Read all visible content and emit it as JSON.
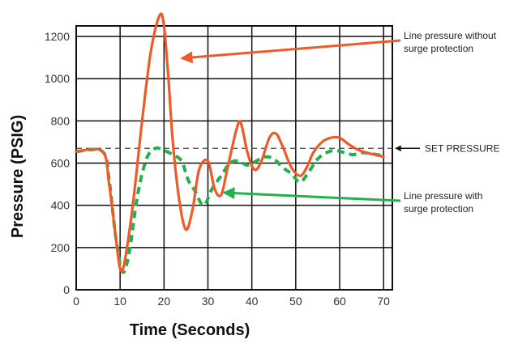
{
  "chart_data": {
    "type": "line",
    "title": "",
    "xlabel": "Time (Seconds)",
    "ylabel": "Pressure (PSIG)",
    "xlim": [
      0,
      72
    ],
    "ylim": [
      0,
      1250
    ],
    "xticks": [
      0,
      10,
      20,
      30,
      40,
      50,
      60,
      70
    ],
    "yticks": [
      0,
      200,
      400,
      600,
      800,
      1000,
      1200
    ],
    "grid": true,
    "set_pressure": {
      "value": 670,
      "label": "SET PRESSURE"
    },
    "series": [
      {
        "id": "without",
        "color": "#f05a28",
        "style": "solid",
        "points": [
          [
            0,
            655
          ],
          [
            6,
            655
          ],
          [
            7.5,
            500
          ],
          [
            9,
            250
          ],
          [
            10,
            100
          ],
          [
            11,
            130
          ],
          [
            13,
            420
          ],
          [
            15,
            800
          ],
          [
            17,
            1130
          ],
          [
            19,
            1300
          ],
          [
            20,
            1250
          ],
          [
            21,
            1000
          ],
          [
            22,
            700
          ],
          [
            23.5,
            420
          ],
          [
            25,
            285
          ],
          [
            26.5,
            380
          ],
          [
            28,
            570
          ],
          [
            30,
            610
          ],
          [
            31.5,
            480
          ],
          [
            33,
            450
          ],
          [
            34.5,
            580
          ],
          [
            36.5,
            760
          ],
          [
            37.5,
            790
          ],
          [
            39,
            650
          ],
          [
            40.5,
            570
          ],
          [
            42,
            600
          ],
          [
            44,
            720
          ],
          [
            45.5,
            740
          ],
          [
            47,
            680
          ],
          [
            49,
            580
          ],
          [
            51,
            540
          ],
          [
            52.5,
            580
          ],
          [
            54,
            650
          ],
          [
            56,
            700
          ],
          [
            58,
            720
          ],
          [
            60,
            720
          ],
          [
            62,
            690
          ],
          [
            64,
            665
          ],
          [
            66,
            650
          ],
          [
            68,
            640
          ],
          [
            70,
            630
          ]
        ]
      },
      {
        "id": "with",
        "color": "#22b14c",
        "style": "dashed",
        "points": [
          [
            0,
            655
          ],
          [
            6,
            655
          ],
          [
            7.5,
            520
          ],
          [
            9,
            250
          ],
          [
            10.5,
            85
          ],
          [
            12,
            170
          ],
          [
            14,
            450
          ],
          [
            16,
            620
          ],
          [
            18,
            670
          ],
          [
            20,
            660
          ],
          [
            22,
            640
          ],
          [
            24,
            610
          ],
          [
            25.5,
            520
          ],
          [
            27,
            470
          ],
          [
            29,
            400
          ],
          [
            31,
            480
          ],
          [
            33,
            540
          ],
          [
            35,
            600
          ],
          [
            37,
            610
          ],
          [
            39,
            590
          ],
          [
            41,
            610
          ],
          [
            43,
            630
          ],
          [
            45,
            620
          ],
          [
            47,
            580
          ],
          [
            49,
            550
          ],
          [
            51,
            510
          ],
          [
            53,
            560
          ],
          [
            55,
            620
          ],
          [
            57,
            650
          ],
          [
            59,
            660
          ],
          [
            61,
            650
          ],
          [
            63,
            640
          ],
          [
            65,
            650
          ],
          [
            67,
            645
          ],
          [
            70,
            635
          ]
        ]
      }
    ],
    "annotations": [
      {
        "target": "without",
        "lines": [
          "Line pressure without",
          "surge protection"
        ]
      },
      {
        "target": "with",
        "lines": [
          "Line pressure with",
          "surge protection"
        ]
      }
    ]
  }
}
